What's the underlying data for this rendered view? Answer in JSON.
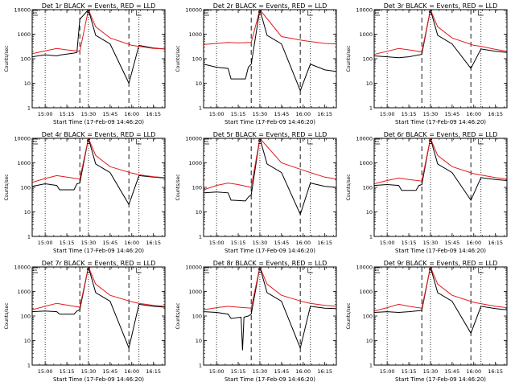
{
  "figure": {
    "ylabel": "Counts/sec",
    "xlabel": "Start Time (17-Feb-09 14:46:20)"
  },
  "chart_data": {
    "type": "line",
    "y_scale": "log",
    "ylim": [
      1,
      10000
    ],
    "y_ticks": [
      {
        "value": 1,
        "label": "1"
      },
      {
        "value": 10,
        "label": "10"
      },
      {
        "value": 100,
        "label": "100"
      },
      {
        "value": 1000,
        "label": "1000"
      },
      {
        "value": 10000,
        "label": "10000"
      }
    ],
    "xlim": [
      "14:51",
      "16:23"
    ],
    "x_ticks": [
      "15:00",
      "15:15",
      "15:30",
      "15:45",
      "16:00",
      "16:15"
    ],
    "legend_placement": "top-left corner marker",
    "colors": {
      "black": "#000000",
      "red": "#e41a1c"
    },
    "markers": {
      "dotted": [
        "15:00",
        "15:30",
        "16:05"
      ],
      "dashed": [
        "15:24",
        "15:58"
      ],
      "S": "15:30",
      "E": "16:05"
    },
    "panels": [
      {
        "title": "Det 1r BLACK = Events, RED = LLD",
        "series": [
          {
            "name": "BLACK",
            "x": [
              "14:51",
              "15:00",
              "15:08",
              "15:10",
              "15:20",
              "15:22",
              "15:24",
              "15:30",
              "15:35",
              "15:45",
              "15:58",
              "16:05",
              "16:15",
              "16:23"
            ],
            "values": [
              120,
              145,
              130,
              140,
              170,
              180,
              4000,
              10000,
              900,
              400,
              10,
              350,
              270,
              250
            ]
          },
          {
            "name": "RED",
            "x": [
              "14:51",
              "15:00",
              "15:08",
              "15:15",
              "15:24",
              "15:30",
              "15:35",
              "15:45",
              "16:00",
              "16:05",
              "16:15",
              "16:23"
            ],
            "values": [
              160,
              210,
              260,
              230,
              200,
              10000,
              2000,
              700,
              350,
              320,
              260,
              250
            ]
          }
        ]
      },
      {
        "title": "Det 2r BLACK = Events, RED = LLD",
        "series": [
          {
            "name": "BLACK",
            "x": [
              "14:51",
              "15:00",
              "15:08",
              "15:10",
              "15:20",
              "15:22",
              "15:24",
              "15:30",
              "15:35",
              "15:45",
              "15:58",
              "16:05",
              "16:15",
              "16:23"
            ],
            "values": [
              60,
              45,
              40,
              15,
              15,
              45,
              60,
              10000,
              900,
              400,
              5,
              60,
              35,
              30
            ]
          },
          {
            "name": "RED",
            "x": [
              "14:51",
              "15:00",
              "15:08",
              "15:15",
              "15:24",
              "15:30",
              "15:45",
              "16:00",
              "16:15",
              "16:23"
            ],
            "values": [
              380,
              420,
              460,
              440,
              460,
              10000,
              800,
              550,
              420,
              400
            ]
          }
        ]
      },
      {
        "title": "Det 3r BLACK = Events, RED = LLD",
        "series": [
          {
            "name": "BLACK",
            "x": [
              "14:51",
              "15:00",
              "15:08",
              "15:15",
              "15:24",
              "15:30",
              "15:35",
              "15:45",
              "15:58",
              "16:05",
              "16:15",
              "16:23"
            ],
            "values": [
              130,
              120,
              110,
              120,
              150,
              10000,
              900,
              400,
              40,
              250,
              200,
              180
            ]
          },
          {
            "name": "RED",
            "x": [
              "14:51",
              "15:00",
              "15:08",
              "15:15",
              "15:24",
              "15:30",
              "15:35",
              "15:45",
              "16:00",
              "16:05",
              "16:15",
              "16:23"
            ],
            "values": [
              150,
              200,
              260,
              230,
              190,
              10000,
              2000,
              700,
              350,
              320,
              240,
              200
            ]
          }
        ]
      },
      {
        "title": "Det 4r BLACK = Events, RED = LLD",
        "series": [
          {
            "name": "BLACK",
            "x": [
              "14:51",
              "15:00",
              "15:08",
              "15:10",
              "15:20",
              "15:22",
              "15:24",
              "15:30",
              "15:35",
              "15:45",
              "15:58",
              "16:05",
              "16:15",
              "16:23"
            ],
            "values": [
              110,
              140,
              120,
              80,
              80,
              140,
              150,
              10000,
              900,
              400,
              20,
              300,
              260,
              240
            ]
          },
          {
            "name": "RED",
            "x": [
              "14:51",
              "15:00",
              "15:08",
              "15:15",
              "15:24",
              "15:30",
              "15:35",
              "15:45",
              "16:00",
              "16:05",
              "16:15",
              "16:23"
            ],
            "values": [
              160,
              230,
              300,
              260,
              220,
              10000,
              2000,
              700,
              380,
              330,
              270,
              250
            ]
          }
        ]
      },
      {
        "title": "Det 5r BLACK = Events, RED = LLD",
        "series": [
          {
            "name": "BLACK",
            "x": [
              "14:51",
              "15:00",
              "15:08",
              "15:10",
              "15:20",
              "15:22",
              "15:24",
              "15:30",
              "15:35",
              "15:45",
              "15:58",
              "16:05",
              "16:15",
              "16:23"
            ],
            "values": [
              60,
              65,
              60,
              30,
              28,
              40,
              50,
              10000,
              900,
              400,
              8,
              150,
              110,
              100
            ]
          },
          {
            "name": "RED",
            "x": [
              "14:51",
              "15:00",
              "15:08",
              "15:15",
              "15:24",
              "15:30",
              "15:45",
              "16:00",
              "16:05",
              "16:15",
              "16:23"
            ],
            "values": [
              80,
              120,
              150,
              130,
              100,
              10000,
              1000,
              500,
              400,
              260,
              220
            ]
          }
        ]
      },
      {
        "title": "Det 6r BLACK = Events, RED = LLD",
        "series": [
          {
            "name": "BLACK",
            "x": [
              "14:51",
              "15:00",
              "15:08",
              "15:10",
              "15:20",
              "15:22",
              "15:24",
              "15:30",
              "15:35",
              "15:45",
              "15:58",
              "16:05",
              "16:15",
              "16:23"
            ],
            "values": [
              120,
              130,
              120,
              75,
              75,
              120,
              130,
              10000,
              900,
              400,
              30,
              250,
              210,
              190
            ]
          },
          {
            "name": "RED",
            "x": [
              "14:51",
              "15:00",
              "15:08",
              "15:15",
              "15:24",
              "15:30",
              "15:35",
              "15:45",
              "16:00",
              "16:05",
              "16:15",
              "16:23"
            ],
            "values": [
              140,
              190,
              240,
              210,
              180,
              10000,
              2000,
              700,
              360,
              320,
              250,
              220
            ]
          }
        ]
      },
      {
        "title": "Det 7r BLACK = Events, RED = LLD",
        "series": [
          {
            "name": "BLACK",
            "x": [
              "14:51",
              "15:00",
              "15:08",
              "15:10",
              "15:20",
              "15:22",
              "15:24",
              "15:30",
              "15:35",
              "15:45",
              "15:58",
              "16:05",
              "16:15",
              "16:23"
            ],
            "values": [
              150,
              160,
              150,
              120,
              120,
              160,
              180,
              10000,
              900,
              400,
              5,
              300,
              250,
              230
            ]
          },
          {
            "name": "RED",
            "x": [
              "14:51",
              "15:00",
              "15:08",
              "15:15",
              "15:24",
              "15:30",
              "15:35",
              "15:45",
              "16:00",
              "16:05",
              "16:15",
              "16:23"
            ],
            "values": [
              180,
              250,
              330,
              280,
              230,
              10000,
              2000,
              700,
              380,
              330,
              270,
              250
            ]
          }
        ]
      },
      {
        "title": "Det 8r BLACK = Events, RED = LLD",
        "series": [
          {
            "name": "BLACK",
            "x": [
              "14:51",
              "15:00",
              "15:08",
              "15:10",
              "15:17",
              "15:18",
              "15:19",
              "15:22",
              "15:24",
              "15:30",
              "15:35",
              "15:45",
              "15:58",
              "16:05",
              "16:15",
              "16:23"
            ],
            "values": [
              150,
              140,
              120,
              80,
              90,
              4,
              90,
              100,
              120,
              10000,
              900,
              400,
              5,
              250,
              210,
              200
            ]
          },
          {
            "name": "RED",
            "x": [
              "14:51",
              "15:00",
              "15:08",
              "15:15",
              "15:24",
              "15:30",
              "15:35",
              "15:45",
              "16:00",
              "16:05",
              "16:15",
              "16:23"
            ],
            "values": [
              180,
              220,
              250,
              230,
              210,
              10000,
              2000,
              700,
              380,
              330,
              270,
              250
            ]
          }
        ]
      },
      {
        "title": "Det 9r BLACK = Events, RED = LLD",
        "series": [
          {
            "name": "BLACK",
            "x": [
              "14:51",
              "15:00",
              "15:08",
              "15:15",
              "15:24",
              "15:30",
              "15:35",
              "15:45",
              "15:58",
              "16:05",
              "16:15",
              "16:23"
            ],
            "values": [
              140,
              150,
              140,
              150,
              170,
              10000,
              900,
              400,
              20,
              250,
              200,
              180
            ]
          },
          {
            "name": "RED",
            "x": [
              "14:51",
              "15:00",
              "15:08",
              "15:15",
              "15:24",
              "15:30",
              "15:35",
              "15:45",
              "16:00",
              "16:05",
              "16:15",
              "16:23"
            ],
            "values": [
              160,
              220,
              300,
              250,
              210,
              10000,
              2000,
              700,
              360,
              320,
              250,
              220
            ]
          }
        ]
      }
    ]
  }
}
